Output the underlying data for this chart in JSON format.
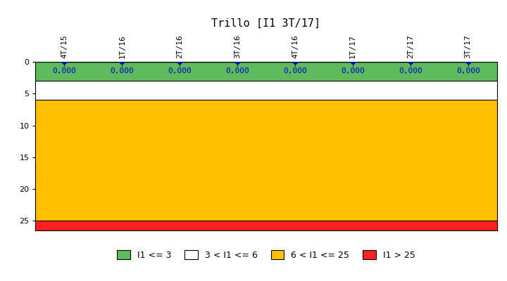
{
  "title": "Trillo [I1 3T/17]",
  "x_labels": [
    "4T/15",
    "1T/16",
    "2T/16",
    "3T/16",
    "4T/16",
    "1T/17",
    "2T/17",
    "3T/17"
  ],
  "y_values": [
    0.0,
    0.0,
    0.0,
    0.0,
    0.0,
    0.0,
    0.0,
    0.0
  ],
  "ylim_min": 0,
  "ylim_max": 26.5,
  "yticks": [
    0,
    5,
    10,
    15,
    20,
    25
  ],
  "band_green_min": 0,
  "band_green_max": 3,
  "band_white_min": 3,
  "band_white_max": 6,
  "band_yellow_min": 6,
  "band_yellow_max": 25,
  "band_red_min": 25,
  "band_red_max": 26.5,
  "band_green_color": "#5DBB5D",
  "band_white_color": "#FFFFFF",
  "band_yellow_color": "#FFC000",
  "band_red_color": "#FF2020",
  "line_color": "black",
  "dot_color": "#0000CC",
  "value_color": "#0000CC",
  "title_fontsize": 11,
  "tick_fontsize": 8,
  "value_fontsize": 8,
  "legend_labels": [
    "I1 <= 3",
    "3 < I1 <= 6",
    "6 < I1 <= 25",
    "I1 > 25"
  ],
  "legend_colors": [
    "#5DBB5D",
    "#FFFFFF",
    "#FFC000",
    "#FF2020"
  ],
  "background_color": "#FFFFFF",
  "fig_width": 7.2,
  "fig_height": 4.0
}
